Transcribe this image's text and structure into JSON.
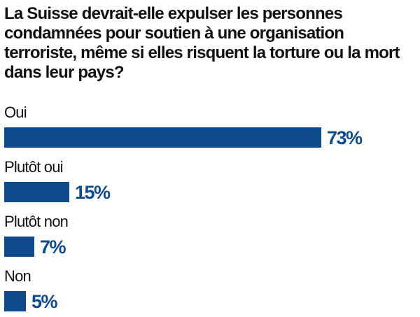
{
  "chart_data": {
    "type": "bar",
    "orientation": "horizontal",
    "title": "La Suisse devrait-elle expulser les personnes condamnées pour soutien à une organisation terroriste, même si elles risquent la torture ou la mort dans leur pays?",
    "categories": [
      "Oui",
      "Plutôt oui",
      "Plutôt non",
      "Non"
    ],
    "values": [
      73,
      15,
      7,
      5
    ],
    "value_labels": [
      "73%",
      "15%",
      "7%",
      "5%"
    ],
    "unit": "%",
    "xlim": [
      0,
      100
    ],
    "grid": false,
    "legend": "none",
    "bar_color": "#0f4a8a",
    "value_label_color": "#0f4a8a",
    "text_color": "#111111"
  }
}
